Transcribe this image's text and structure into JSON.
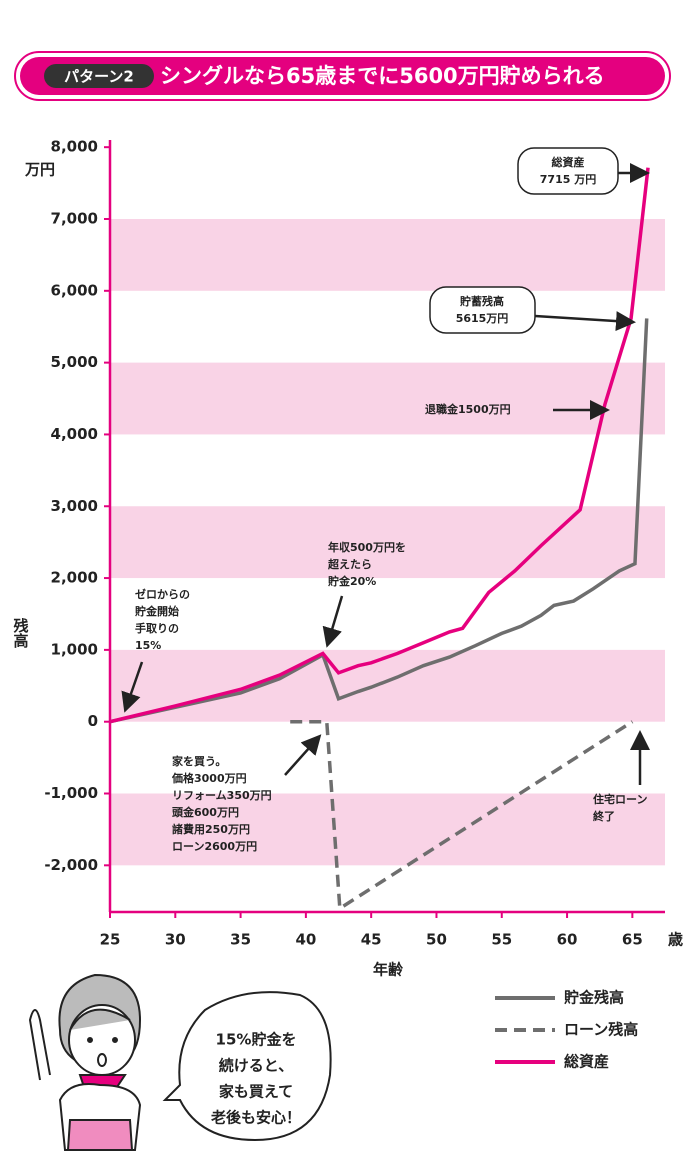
{
  "chart_data": {
    "type": "line",
    "badge": "パターン2",
    "title": "シングルなら65歳までに5600万円貯められる",
    "xlabel": "年齢",
    "xunit": "歳",
    "ylabel": "残高",
    "yunit": "万円",
    "xlim": [
      25,
      67.5
    ],
    "xticks": [
      25,
      30,
      35,
      40,
      45,
      50,
      55,
      60,
      65
    ],
    "ylim": [
      -2650,
      8100
    ],
    "yticks": [
      {
        "value": -2000,
        "label": "-2,000"
      },
      {
        "value": -1000,
        "label": "-1,000"
      },
      0,
      {
        "value": 1000,
        "label": "1,000"
      },
      {
        "value": 2000,
        "label": "2,000"
      },
      {
        "value": 3000,
        "label": "3,000"
      },
      {
        "value": 4000,
        "label": "4,000"
      },
      {
        "value": 5000,
        "label": "5,000"
      },
      {
        "value": 6000,
        "label": "6,000"
      },
      {
        "value": 7000,
        "label": "7,000"
      },
      {
        "value": 8000,
        "label": "8,000"
      }
    ],
    "bands": true,
    "band_color": "#f9d3e6",
    "axis_color": "#e4007f",
    "series": [
      {
        "name": "貯金残高",
        "color": "#6e6e6e",
        "dash": false,
        "x": [
          25,
          27,
          30,
          35,
          38,
          41.3,
          42.5,
          44,
          45,
          47,
          49,
          51,
          53,
          55,
          56.5,
          58,
          59,
          60.5,
          62,
          64,
          65.2,
          66.1
        ],
        "values": [
          0,
          80,
          200,
          400,
          600,
          930,
          320,
          420,
          480,
          620,
          780,
          900,
          1060,
          1230,
          1330,
          1480,
          1620,
          1680,
          1850,
          2100,
          2200,
          5615
        ]
      },
      {
        "name": "ローン残高",
        "color": "#6e6e6e",
        "dash": true,
        "x": [
          38.8,
          41.6,
          42.6,
          65
        ],
        "values": [
          0,
          0,
          -2600,
          0
        ]
      },
      {
        "name": "総資産",
        "color": "#e6007e",
        "dash": false,
        "x": [
          25,
          30,
          35,
          38,
          41.3,
          42.5,
          44,
          45,
          47,
          49,
          51,
          52,
          54,
          56,
          58,
          61,
          62.9,
          64.9,
          66.2
        ],
        "values": [
          0,
          220,
          450,
          650,
          950,
          680,
          780,
          820,
          950,
          1100,
          1250,
          1300,
          1800,
          2100,
          2450,
          2950,
          4420,
          5615,
          7715
        ]
      }
    ],
    "annotations": [
      {
        "lines": [
          "ゼロからの",
          "貯金開始",
          "手取りの",
          "15%"
        ]
      },
      {
        "lines": [
          "年収500万円を",
          "超えたら",
          "貯金20%"
        ]
      },
      {
        "lines": [
          "家を買う。",
          "価格3000万円",
          "リフォーム350万円",
          "頭金600万円",
          "諸費用250万円",
          "ローン2600万円"
        ]
      },
      {
        "lines": [
          "住宅ローン",
          "終了"
        ]
      },
      {
        "lines": [
          "退職金1500万円"
        ]
      },
      {
        "lines": [
          "貯蓄残高",
          "5615万円"
        ]
      },
      {
        "lines": [
          "総資産",
          "7715 万円"
        ]
      }
    ],
    "speech": [
      "15%貯金を",
      "続けると、",
      "家も買えて",
      "老後も安心！"
    ]
  }
}
